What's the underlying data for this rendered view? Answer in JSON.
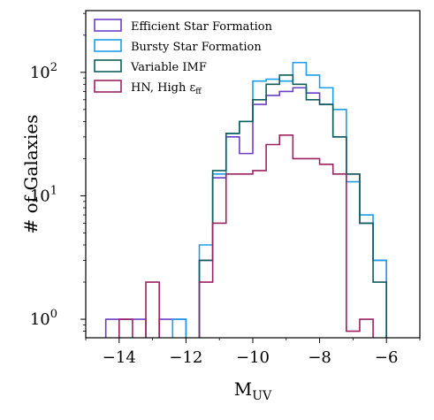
{
  "chart_data": {
    "type": "histogram",
    "xlabel": "M",
    "xlabel_sub": "UV",
    "ylabel": "# of Galaxies",
    "xlim": [
      -15,
      -5
    ],
    "ylim_log10": [
      -0.15,
      2.5
    ],
    "yscale": "log",
    "legend_position": "top-left",
    "x_ticks": [
      {
        "value": -14,
        "label": "−14"
      },
      {
        "value": -12,
        "label": "−12"
      },
      {
        "value": -10,
        "label": "−10"
      },
      {
        "value": -8,
        "label": "−8"
      },
      {
        "value": -6,
        "label": "−6"
      }
    ],
    "y_ticks": [
      {
        "value": 1,
        "base": "10",
        "exp": "0"
      },
      {
        "value": 10,
        "base": "10",
        "exp": "1"
      },
      {
        "value": 100,
        "base": "10",
        "exp": "2"
      }
    ],
    "bin_edges": [
      -14.4,
      -14.0,
      -13.6,
      -13.2,
      -12.8,
      -12.4,
      -12.0,
      -11.6,
      -11.2,
      -10.8,
      -10.4,
      -10.0,
      -9.6,
      -9.2,
      -8.8,
      -8.4,
      -8.0,
      -7.6,
      -7.2,
      -6.8,
      -6.4,
      -6.0
    ],
    "series": [
      {
        "name": "Efficient Star Formation",
        "color": "#6a3fc8",
        "counts": [
          1,
          1,
          1,
          0,
          1,
          1,
          0,
          3,
          14,
          30,
          22,
          55,
          65,
          70,
          75,
          68,
          55,
          30,
          15,
          6,
          3
        ]
      },
      {
        "name": "Bursty Star Formation",
        "color": "#1e9de8",
        "counts": [
          0,
          0,
          0,
          0,
          0,
          1,
          0,
          4,
          15,
          32,
          40,
          85,
          88,
          85,
          120,
          95,
          75,
          50,
          13,
          7,
          3
        ]
      },
      {
        "name": "Variable IMF",
        "color": "#0e5e5c",
        "counts": [
          0,
          0,
          0,
          0,
          0,
          0,
          0,
          3,
          16,
          32,
          40,
          60,
          80,
          95,
          80,
          60,
          55,
          30,
          15,
          6,
          2
        ]
      },
      {
        "name": "HN, High ε",
        "name_sub": "ff",
        "color": "#9c2262",
        "counts": [
          0,
          1,
          0,
          2,
          0,
          0,
          0,
          2,
          6,
          15,
          15,
          16,
          26,
          31,
          20,
          20,
          18,
          15,
          0.8,
          1,
          0
        ]
      }
    ]
  }
}
